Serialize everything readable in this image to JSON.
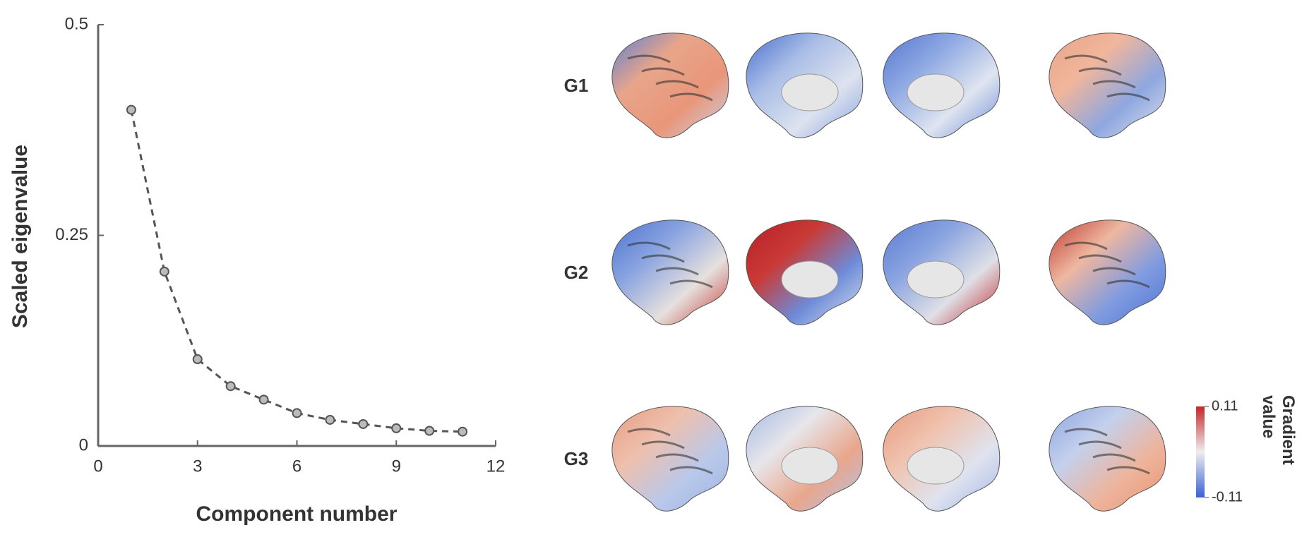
{
  "chart_data": {
    "type": "line",
    "x_label": "Component number",
    "y_label": "Scaled eigenvalue",
    "x": [
      1,
      2,
      3,
      4,
      5,
      6,
      7,
      8,
      9,
      10,
      11
    ],
    "series": [
      {
        "color": "#555555",
        "values": [
          0.399,
          0.207,
          0.103,
          0.071,
          0.055,
          0.039,
          0.031,
          0.026,
          0.021,
          0.018,
          0.017
        ]
      }
    ],
    "xlim": [
      0,
      12
    ],
    "xticks": [
      0,
      3,
      6,
      9,
      12
    ],
    "ylim": [
      0,
      0.5
    ],
    "yticks": [
      0,
      0.25,
      0.5
    ]
  },
  "brain_maps": {
    "rows": [
      "G1",
      "G2",
      "G3"
    ],
    "colorbar": {
      "label": "Gradient value",
      "lim": [
        -0.11,
        0.11
      ],
      "ticks": [
        0.11,
        -0.11
      ]
    }
  }
}
